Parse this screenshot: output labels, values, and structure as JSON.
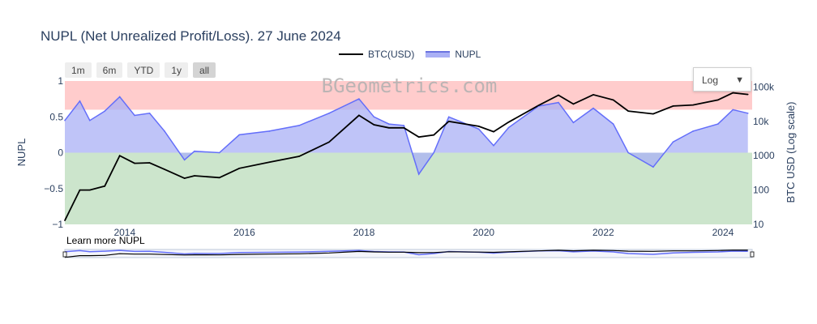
{
  "title": "NUPL (Net Unrealized Profit/Loss). 27 June 2024",
  "legend": {
    "btc": "BTC(USD)",
    "nupl": "NUPL"
  },
  "range_buttons": [
    "1m",
    "6m",
    "YTD",
    "1y",
    "all"
  ],
  "active_range": "all",
  "scale_select": {
    "value": "Log"
  },
  "watermark": "BGeometrics.com",
  "learn_more": "Learn more NUPL",
  "colors": {
    "btc": "#000000",
    "nupl_line": "#636efa",
    "nupl_fill": "#aab0f5",
    "zone_top": "#ffcccc",
    "zone_bottom": "#cce5cc"
  },
  "chart_data": {
    "type": "line",
    "x_range": [
      "2013-01-01",
      "2024-06-27"
    ],
    "y_left": {
      "label": "NUPL",
      "range": [
        -1,
        1
      ],
      "ticks": [
        1,
        0.5,
        0,
        -0.5,
        -1
      ],
      "tick_labels": [
        "1",
        "0.5",
        "0",
        "−0.5",
        "−1"
      ]
    },
    "y_right": {
      "label": "BTC USD (Log scale)",
      "scale": "log",
      "range": [
        10,
        150000
      ],
      "ticks": [
        100000,
        10000,
        1000,
        100,
        10
      ],
      "tick_labels": [
        "100k",
        "10k",
        "1000",
        "100",
        "10"
      ]
    },
    "x_ticks": [
      "2014",
      "2016",
      "2018",
      "2020",
      "2022",
      "2024"
    ],
    "x_tick_values": [
      "2014-01-01",
      "2016-01-01",
      "2018-01-01",
      "2020-01-01",
      "2022-01-01",
      "2024-01-01"
    ],
    "zones": [
      {
        "from": 0.6,
        "to": 1
      },
      {
        "from": -1,
        "to": 0
      }
    ],
    "series": [
      {
        "name": "NUPL",
        "axis": "left",
        "x": [
          "2013-01",
          "2013-04",
          "2013-06",
          "2013-09",
          "2013-12",
          "2014-03",
          "2014-06",
          "2014-09",
          "2015-01",
          "2015-03",
          "2015-08",
          "2015-12",
          "2016-06",
          "2016-12",
          "2017-06",
          "2017-12",
          "2018-03",
          "2018-06",
          "2018-09",
          "2018-12",
          "2019-03",
          "2019-06",
          "2019-12",
          "2020-03",
          "2020-06",
          "2020-12",
          "2021-04",
          "2021-07",
          "2021-11",
          "2022-03",
          "2022-06",
          "2022-11",
          "2023-03",
          "2023-07",
          "2023-12",
          "2024-03",
          "2024-06"
        ],
        "values": [
          0.45,
          0.72,
          0.45,
          0.58,
          0.78,
          0.52,
          0.55,
          0.3,
          -0.1,
          0.02,
          0.0,
          0.25,
          0.3,
          0.38,
          0.55,
          0.75,
          0.5,
          0.4,
          0.38,
          -0.3,
          0.0,
          0.5,
          0.33,
          0.1,
          0.35,
          0.65,
          0.7,
          0.42,
          0.62,
          0.4,
          0.0,
          -0.2,
          0.15,
          0.3,
          0.4,
          0.6,
          0.55
        ]
      },
      {
        "name": "BTC(USD)",
        "axis": "right",
        "x": [
          "2013-01",
          "2013-04",
          "2013-06",
          "2013-09",
          "2013-12",
          "2014-03",
          "2014-06",
          "2014-09",
          "2015-01",
          "2015-03",
          "2015-08",
          "2015-12",
          "2016-06",
          "2016-12",
          "2017-06",
          "2017-12",
          "2018-03",
          "2018-06",
          "2018-09",
          "2018-12",
          "2019-03",
          "2019-06",
          "2019-12",
          "2020-03",
          "2020-06",
          "2020-12",
          "2021-04",
          "2021-07",
          "2021-11",
          "2022-03",
          "2022-06",
          "2022-11",
          "2023-03",
          "2023-07",
          "2023-12",
          "2024-03",
          "2024-06"
        ],
        "values": [
          13,
          100,
          100,
          130,
          1000,
          600,
          620,
          400,
          220,
          260,
          230,
          430,
          650,
          960,
          2500,
          15000,
          8000,
          6500,
          6500,
          3500,
          4000,
          10000,
          7200,
          5000,
          9500,
          29000,
          58000,
          32000,
          60000,
          42000,
          20000,
          16500,
          28000,
          30000,
          42000,
          68000,
          61000
        ]
      }
    ]
  }
}
